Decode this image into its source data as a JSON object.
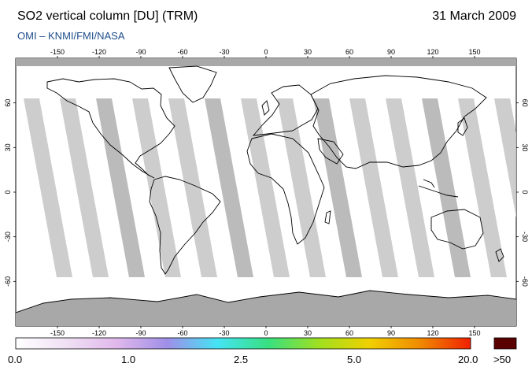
{
  "header": {
    "title": "SO2 vertical column [DU] (TRM)",
    "date": "31 March 2009",
    "subtitle": "OMI  –  KNMI/FMI/NASA"
  },
  "map": {
    "lon_ticks": [
      -150,
      -120,
      -90,
      -60,
      -30,
      0,
      30,
      60,
      90,
      120,
      150
    ],
    "lat_ticks": [
      60,
      30,
      0,
      -30,
      -60
    ],
    "lon_range": [
      -180,
      180
    ],
    "lat_range": [
      -90,
      90
    ],
    "land_outline_color": "#000000",
    "gap_color": "#c8c8c8",
    "polar_night_color": "#a8a8a8"
  },
  "colorbar": {
    "labels": [
      "0.0",
      "1.0",
      "2.5",
      "5.0",
      "20.0"
    ],
    "overflow_label": ">50",
    "overflow_color": "#5a0000",
    "colors": [
      "#ffffff",
      "#f0e0f4",
      "#e0b8ec",
      "#9f8fe8",
      "#44e4f4",
      "#38e080",
      "#a0e020",
      "#f0d000",
      "#f08a00",
      "#f02000"
    ]
  }
}
